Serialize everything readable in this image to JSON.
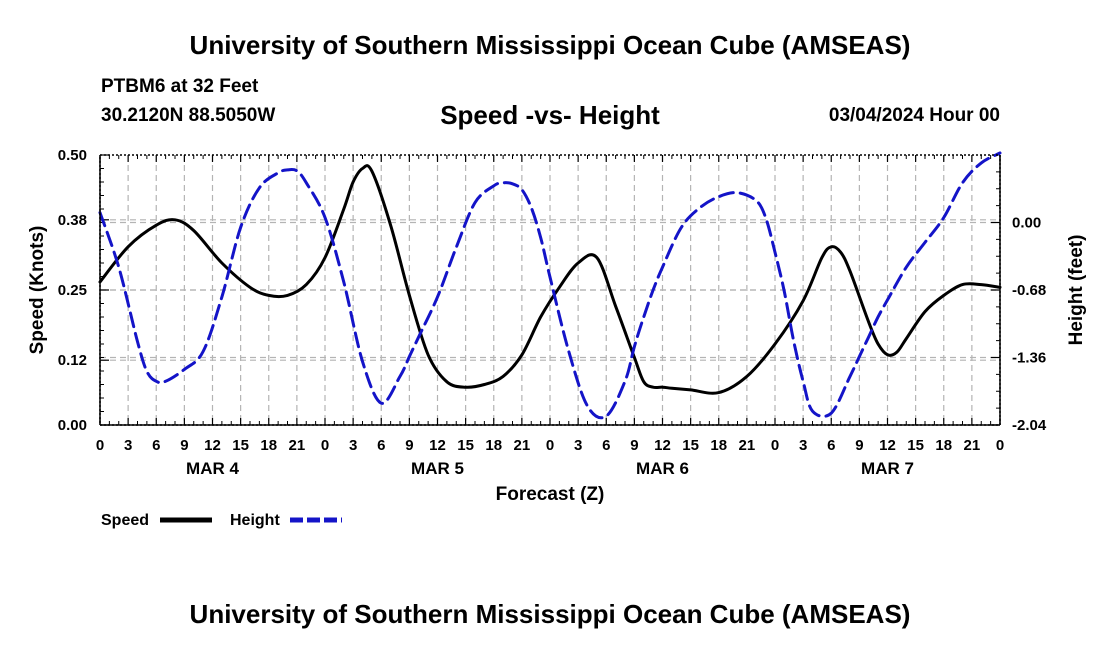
{
  "header": {
    "title": "University of Southern Mississippi Ocean Cube (AMSEAS)",
    "station": "PTBM6 at 32 Feet",
    "coords": "30.2120N  88.5050W",
    "chart_title": "Speed -vs- Height",
    "date": "03/04/2024 Hour 00"
  },
  "footer": {
    "title": "University of Southern Mississippi Ocean Cube (AMSEAS)"
  },
  "colors": {
    "speed": "#000000",
    "height": "#1414c8",
    "grid": "#b4b4b4"
  },
  "chart_data": {
    "type": "line",
    "title": "Speed -vs- Height",
    "xlabel": "Forecast (Z)",
    "ylabel": "Speed (Knots)",
    "y2label": "Height (feet)",
    "xlim": [
      0,
      96
    ],
    "ylim": [
      0,
      0.5
    ],
    "y2lim": [
      -2.04,
      0.68
    ],
    "x_tick_labels": [
      "0",
      "3",
      "6",
      "9",
      "12",
      "15",
      "18",
      "21",
      "0",
      "3",
      "6",
      "9",
      "12",
      "15",
      "18",
      "21",
      "0",
      "3",
      "6",
      "9",
      "12",
      "15",
      "18",
      "21",
      "0",
      "3",
      "6",
      "9",
      "12",
      "15",
      "18",
      "21",
      "0"
    ],
    "day_labels": [
      {
        "label": "MAR 4",
        "x": 12
      },
      {
        "label": "MAR 5",
        "x": 36
      },
      {
        "label": "MAR 6",
        "x": 60
      },
      {
        "label": "MAR 7",
        "x": 84
      }
    ],
    "y_ticks": [
      "0.00",
      "0.12",
      "0.25",
      "0.38",
      "0.50"
    ],
    "y2_ticks": [
      "-2.04",
      "-1.36",
      "-0.68",
      "0.00"
    ],
    "legend": {
      "position": "bottom-left",
      "speed_label": "Speed",
      "height_label": "Height"
    },
    "series": [
      {
        "name": "Speed",
        "axis": "left",
        "style": "solid",
        "x": [
          0,
          3,
          6,
          8,
          10,
          13,
          16,
          18,
          20,
          22,
          24,
          26,
          27,
          28,
          29,
          31,
          33,
          35,
          37,
          39,
          41,
          43,
          45,
          47,
          49,
          51,
          53,
          55,
          57,
          58,
          59,
          60,
          61,
          63,
          66,
          69,
          72,
          75,
          77,
          78,
          79,
          80,
          82,
          83,
          84,
          85,
          86,
          88,
          90,
          92,
          94,
          96
        ],
        "values": [
          0.265,
          0.33,
          0.37,
          0.38,
          0.36,
          0.3,
          0.255,
          0.24,
          0.24,
          0.26,
          0.31,
          0.4,
          0.45,
          0.475,
          0.47,
          0.37,
          0.24,
          0.13,
          0.08,
          0.07,
          0.075,
          0.09,
          0.13,
          0.2,
          0.255,
          0.3,
          0.31,
          0.22,
          0.125,
          0.08,
          0.07,
          0.07,
          0.068,
          0.065,
          0.06,
          0.09,
          0.15,
          0.23,
          0.31,
          0.33,
          0.32,
          0.285,
          0.19,
          0.15,
          0.13,
          0.135,
          0.16,
          0.21,
          0.24,
          0.26,
          0.26,
          0.255
        ]
      },
      {
        "name": "Height",
        "axis": "right",
        "style": "dashed",
        "x": [
          0,
          2,
          4,
          5,
          6,
          7,
          9,
          11,
          13,
          15,
          17,
          19,
          20,
          21,
          22,
          24,
          26,
          28,
          30,
          32,
          33,
          34,
          36,
          38,
          40,
          42,
          43,
          44,
          45,
          46,
          47,
          48,
          50,
          52,
          54,
          56,
          57,
          58,
          59,
          60,
          62,
          64,
          66,
          68,
          70,
          71,
          72,
          73,
          74,
          75,
          76,
          78,
          80,
          81,
          82,
          83,
          84,
          86,
          88,
          90,
          92,
          94,
          96
        ],
        "values": [
          0.1,
          -0.45,
          -1.2,
          -1.5,
          -1.6,
          -1.6,
          -1.48,
          -1.3,
          -0.75,
          -0.05,
          0.35,
          0.5,
          0.53,
          0.52,
          0.4,
          0.05,
          -0.6,
          -1.4,
          -1.82,
          -1.55,
          -1.35,
          -1.15,
          -0.75,
          -0.25,
          0.2,
          0.37,
          0.4,
          0.39,
          0.33,
          0.15,
          -0.15,
          -0.55,
          -1.3,
          -1.85,
          -1.95,
          -1.6,
          -1.25,
          -0.95,
          -0.68,
          -0.45,
          -0.05,
          0.15,
          0.26,
          0.3,
          0.22,
          0.05,
          -0.3,
          -0.7,
          -1.2,
          -1.6,
          -1.9,
          -1.92,
          -1.55,
          -1.35,
          -1.15,
          -0.95,
          -0.78,
          -0.45,
          -0.2,
          0.05,
          0.4,
          0.6,
          0.7
        ]
      }
    ]
  }
}
